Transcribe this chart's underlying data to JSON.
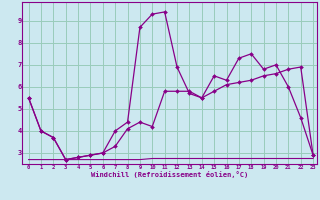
{
  "xlabel": "Windchill (Refroidissement éolien,°C)",
  "bg_color": "#cce8f0",
  "line_color": "#880088",
  "grid_color": "#99ccbb",
  "series1_x": [
    0,
    1,
    2,
    3,
    4,
    5,
    6,
    7,
    8,
    9,
    10,
    11,
    12,
    13,
    14,
    15,
    16,
    17,
    18,
    19,
    20,
    21,
    22,
    23
  ],
  "series1_y": [
    5.5,
    4.0,
    3.7,
    2.7,
    2.8,
    2.9,
    3.0,
    3.3,
    4.1,
    4.4,
    4.2,
    5.8,
    5.8,
    5.8,
    5.5,
    5.8,
    6.1,
    6.2,
    6.3,
    6.5,
    6.6,
    6.8,
    6.9,
    2.9
  ],
  "series2_x": [
    0,
    1,
    2,
    3,
    4,
    5,
    6,
    7,
    8,
    9,
    10,
    11,
    12,
    13,
    14,
    15,
    16,
    17,
    18,
    19,
    20,
    21,
    22,
    23
  ],
  "series2_y": [
    5.5,
    4.0,
    3.7,
    2.7,
    2.8,
    2.9,
    3.0,
    4.0,
    4.4,
    8.7,
    9.3,
    9.4,
    6.9,
    5.7,
    5.5,
    6.5,
    6.3,
    7.3,
    7.5,
    6.8,
    7.0,
    6.0,
    4.6,
    2.9
  ],
  "series3_x": [
    0,
    1,
    2,
    3,
    4,
    5,
    6,
    7,
    8,
    9,
    10,
    11,
    12,
    13,
    14,
    15,
    16,
    17,
    18,
    19,
    20,
    21,
    22,
    23
  ],
  "series3_y": [
    2.7,
    2.7,
    2.7,
    2.7,
    2.7,
    2.7,
    2.7,
    2.7,
    2.7,
    2.7,
    2.75,
    2.75,
    2.75,
    2.75,
    2.75,
    2.75,
    2.75,
    2.75,
    2.75,
    2.75,
    2.75,
    2.75,
    2.75,
    2.75
  ],
  "xlim": [
    -0.5,
    23.3
  ],
  "ylim": [
    2.5,
    9.85
  ],
  "yticks": [
    3,
    4,
    5,
    6,
    7,
    8,
    9
  ],
  "xticks": [
    0,
    1,
    2,
    3,
    4,
    5,
    6,
    7,
    8,
    9,
    10,
    11,
    12,
    13,
    14,
    15,
    16,
    17,
    18,
    19,
    20,
    21,
    22,
    23
  ]
}
